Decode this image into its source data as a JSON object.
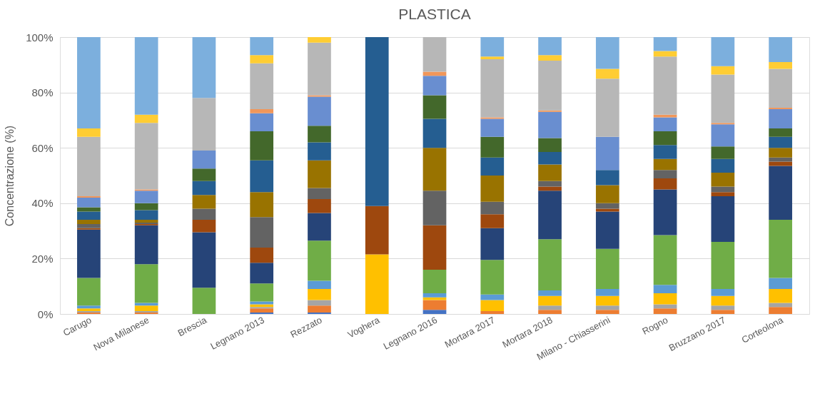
{
  "chart_data": {
    "type": "bar",
    "title": "PLASTICA",
    "ylabel": "Concentrazione (%)",
    "stacked": true,
    "grid": "y",
    "legend": false,
    "categories": [
      "Carugo",
      "Nova Milanese",
      "Brescia",
      "Legnano 2013",
      "Rezzato",
      "Voghera",
      "Legnano 2016",
      "Mortara 2017",
      "Mortara 2018",
      "Milano - Chiasserini",
      "Rogno",
      "Bruzzano 2017",
      "Corteolona"
    ],
    "ylim": [
      0,
      100
    ],
    "yticks": [
      {
        "value": 0,
        "label": "0%"
      },
      {
        "value": 20,
        "label": "20%"
      },
      {
        "value": 40,
        "label": "40%"
      },
      {
        "value": 60,
        "label": "60%"
      },
      {
        "value": 80,
        "label": "80%"
      },
      {
        "value": 100,
        "label": "100%"
      }
    ],
    "series": [
      {
        "color": "#4472c4",
        "values": [
          0,
          0,
          0,
          0.5,
          0.5,
          0,
          1.5,
          0,
          0,
          0,
          0,
          0,
          0
        ]
      },
      {
        "color": "#ed7d31",
        "values": [
          0.5,
          0.5,
          0,
          1.5,
          2.5,
          0,
          3.5,
          1,
          1.5,
          1.5,
          2,
          1.5,
          2.5
        ]
      },
      {
        "color": "#a5a5a5",
        "values": [
          0.5,
          0.5,
          0,
          0.5,
          2,
          0,
          0,
          0,
          1.5,
          1.5,
          1.5,
          1.5,
          1.5
        ]
      },
      {
        "color": "#ffc000",
        "values": [
          1,
          2,
          0,
          1,
          4,
          21.5,
          1,
          4,
          3.5,
          3.5,
          4,
          3.5,
          5
        ]
      },
      {
        "color": "#5b9bd5",
        "values": [
          1,
          1,
          0,
          1,
          3,
          0,
          1.5,
          2,
          2,
          2.5,
          3,
          2.5,
          4
        ]
      },
      {
        "color": "#70ad47",
        "values": [
          10,
          14,
          9.5,
          6.5,
          14.5,
          0,
          8.5,
          12.5,
          18.5,
          14.5,
          18,
          17,
          21
        ]
      },
      {
        "color": "#264478",
        "values": [
          17.5,
          14,
          20,
          7.5,
          10,
          0,
          0,
          11.5,
          17.5,
          13.5,
          16.5,
          16.5,
          19.5
        ]
      },
      {
        "color": "#9e480e",
        "values": [
          0.5,
          0.5,
          4.5,
          5.5,
          5,
          17.5,
          16,
          5,
          1.5,
          1,
          4,
          1.5,
          1.5
        ]
      },
      {
        "color": "#636363",
        "values": [
          1.5,
          0.5,
          4,
          11,
          4,
          0,
          12.5,
          4.5,
          2,
          2,
          3,
          2,
          1.5
        ]
      },
      {
        "color": "#997300",
        "values": [
          1.5,
          1,
          5,
          9,
          10,
          0,
          15.5,
          9.5,
          6,
          6.5,
          4,
          5,
          3.5
        ]
      },
      {
        "color": "#255e91",
        "values": [
          3,
          3.5,
          5,
          11.5,
          6.5,
          61,
          10.5,
          6.5,
          4.5,
          5.5,
          5,
          5,
          4
        ]
      },
      {
        "color": "#43682b",
        "values": [
          1.5,
          2.5,
          4.5,
          10.5,
          6,
          0,
          8.5,
          7.5,
          5,
          0,
          5,
          4.5,
          3
        ]
      },
      {
        "color": "#698ed0",
        "values": [
          3.5,
          4.5,
          6.5,
          6.5,
          10.5,
          0,
          7,
          6.5,
          9.5,
          12,
          5,
          8,
          7
        ]
      },
      {
        "color": "#f1975a",
        "values": [
          0.5,
          0.5,
          0,
          1.5,
          0.5,
          0,
          1.5,
          0.5,
          0.5,
          0,
          1,
          0.5,
          0.5
        ]
      },
      {
        "color": "#b7b7b7",
        "values": [
          21.5,
          24,
          19,
          16.5,
          19,
          0,
          12.5,
          21,
          18,
          21,
          21,
          17.5,
          14
        ]
      },
      {
        "color": "#ffcd33",
        "values": [
          3,
          3,
          0,
          3,
          2,
          0,
          0,
          1,
          2,
          3.5,
          2,
          3,
          2.5
        ]
      },
      {
        "color": "#7cafdd",
        "values": [
          33,
          28,
          22,
          6.5,
          0,
          0,
          0,
          7,
          6.5,
          11.5,
          5,
          10.5,
          9
        ]
      }
    ]
  }
}
